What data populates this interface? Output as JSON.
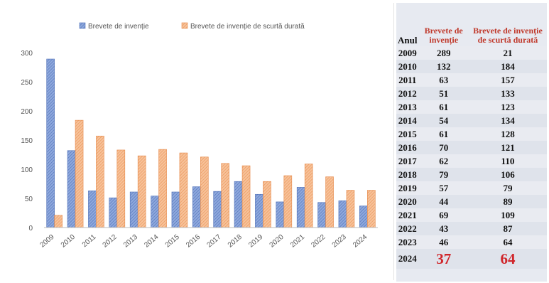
{
  "chart_data": {
    "type": "bar",
    "categories": [
      "2009",
      "2010",
      "2011",
      "2012",
      "2013",
      "2014",
      "2015",
      "2016",
      "2017",
      "2018",
      "2019",
      "2020",
      "2021",
      "2022",
      "2023",
      "2024"
    ],
    "series": [
      {
        "name": "Brevete de invenție",
        "values": [
          289,
          132,
          63,
          51,
          61,
          54,
          61,
          70,
          62,
          79,
          57,
          44,
          69,
          43,
          46,
          37
        ],
        "color": "#5b7fc7"
      },
      {
        "name": "Brevete de invenție de scurtă durată",
        "values": [
          21,
          184,
          157,
          133,
          123,
          134,
          128,
          121,
          110,
          106,
          79,
          89,
          109,
          87,
          64,
          64
        ],
        "color": "#f0a56b"
      }
    ],
    "ylim": [
      0,
      300
    ],
    "yticks": [
      "0",
      "50",
      "100",
      "150",
      "200",
      "250",
      "300"
    ],
    "grid": false,
    "legend_position": "top"
  },
  "table": {
    "headers": [
      "Anul",
      "Brevete de invenție",
      "Brevete de invenție de scurtă durată"
    ],
    "rows": [
      [
        "2009",
        "289",
        "21"
      ],
      [
        "2010",
        "132",
        "184"
      ],
      [
        "2011",
        "63",
        "157"
      ],
      [
        "2012",
        "51",
        "133"
      ],
      [
        "2013",
        "61",
        "123"
      ],
      [
        "2014",
        "54",
        "134"
      ],
      [
        "2015",
        "61",
        "128"
      ],
      [
        "2016",
        "70",
        "121"
      ],
      [
        "2017",
        "62",
        "110"
      ],
      [
        "2018",
        "79",
        "106"
      ],
      [
        "2019",
        "57",
        "79"
      ],
      [
        "2020",
        "44",
        "89"
      ],
      [
        "2021",
        "69",
        "109"
      ],
      [
        "2022",
        "43",
        "87"
      ],
      [
        "2023",
        "46",
        "64"
      ],
      [
        "2024",
        "37",
        "64"
      ]
    ]
  },
  "colors": {
    "accent_red": "#c0392b",
    "highlight_red": "#d0262b"
  }
}
